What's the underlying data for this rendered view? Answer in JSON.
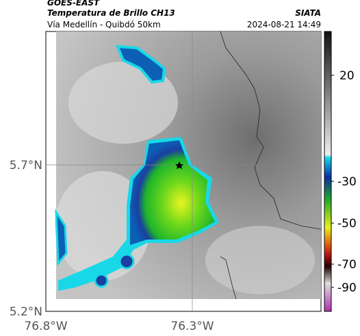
{
  "header": {
    "title": "GOES-EAST",
    "subtitle": "Temperatura de Brillo CH13",
    "source": "SIATA",
    "route": "Vía Medellín - Quibdó 50km",
    "timestamp": "2024-08-21 14:49"
  },
  "map": {
    "lat_labels": [
      "5.7°N",
      "5.2°N"
    ],
    "lon_labels": [
      "76.8°W",
      "76.3°W"
    ]
  },
  "colorbar": {
    "tick_labels": [
      "20",
      "-30",
      "-50",
      "-70",
      "-90"
    ]
  }
}
